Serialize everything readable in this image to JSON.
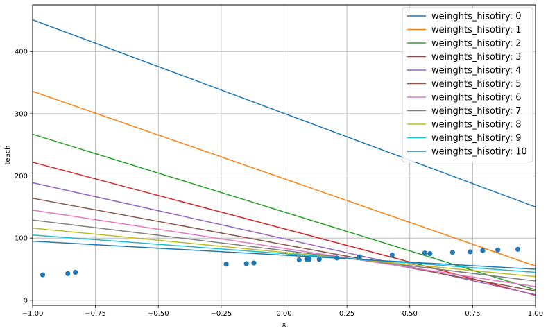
{
  "chart_data": {
    "type": "line",
    "xlabel": "x",
    "ylabel": "teach",
    "xlim": [
      -1.0,
      1.0
    ],
    "ylim": [
      -8,
      475
    ],
    "x_ticks": [
      -1.0,
      -0.75,
      -0.5,
      -0.25,
      0.0,
      0.25,
      0.5,
      0.75,
      1.0
    ],
    "x_tick_labels": [
      "−1.00",
      "−0.75",
      "−0.50",
      "−0.25",
      "0.00",
      "0.25",
      "0.50",
      "0.75",
      "1.00"
    ],
    "y_ticks": [
      0,
      100,
      200,
      300,
      400
    ],
    "y_tick_labels": [
      "0",
      "100",
      "200",
      "300",
      "400"
    ],
    "grid": true,
    "legend_position": "top-right",
    "series": [
      {
        "name": "weinghts_hisotiry: 0",
        "color": "#1f77b4",
        "x": [
          -1.0,
          1.0
        ],
        "y": [
          451,
          150
        ]
      },
      {
        "name": "weinghts_hisotiry: 1",
        "color": "#ff7f0e",
        "x": [
          -1.0,
          1.0
        ],
        "y": [
          336,
          55
        ]
      },
      {
        "name": "weinghts_hisotiry: 2",
        "color": "#2ca02c",
        "x": [
          -1.0,
          1.0
        ],
        "y": [
          267,
          17
        ]
      },
      {
        "name": "weinghts_hisotiry: 3",
        "color": "#d62728",
        "x": [
          -1.0,
          1.0
        ],
        "y": [
          222,
          8
        ]
      },
      {
        "name": "weinghts_hisotiry: 4",
        "color": "#9467bd",
        "x": [
          -1.0,
          1.0
        ],
        "y": [
          189,
          9
        ]
      },
      {
        "name": "weinghts_hisotiry: 5",
        "color": "#8c564b",
        "x": [
          -1.0,
          1.0
        ],
        "y": [
          164,
          15
        ]
      },
      {
        "name": "weinghts_hisotiry: 6",
        "color": "#e377c2",
        "x": [
          -1.0,
          1.0
        ],
        "y": [
          145,
          22
        ]
      },
      {
        "name": "weinghts_hisotiry: 7",
        "color": "#7f7f7f",
        "x": [
          -1.0,
          1.0
        ],
        "y": [
          129,
          31
        ]
      },
      {
        "name": "weinghts_hisotiry: 8",
        "color": "#bcbd22",
        "x": [
          -1.0,
          1.0
        ],
        "y": [
          116,
          38
        ]
      },
      {
        "name": "weinghts_hisotiry: 9",
        "color": "#17becf",
        "x": [
          -1.0,
          1.0
        ],
        "y": [
          105,
          45
        ]
      },
      {
        "name": "weinghts_hisotiry: 10",
        "color": "#1f77b4",
        "x": [
          -1.0,
          1.0
        ],
        "y": [
          95,
          50
        ]
      }
    ],
    "scatter": {
      "color": "#1f77b4",
      "x": [
        -0.96,
        -0.86,
        -0.83,
        -0.23,
        -0.15,
        -0.12,
        0.06,
        0.09,
        0.1,
        0.14,
        0.21,
        0.3,
        0.43,
        0.56,
        0.58,
        0.67,
        0.74,
        0.79,
        0.85,
        0.93
      ],
      "y": [
        41,
        43,
        45,
        58,
        59,
        60,
        65,
        66,
        66,
        66,
        68,
        70,
        73,
        76,
        75,
        77,
        78,
        80,
        81,
        82
      ]
    }
  }
}
